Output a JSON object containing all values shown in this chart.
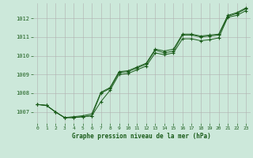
{
  "background_color": "#cce8da",
  "grid_color": "#b0b0b0",
  "line_color": "#1a5c1a",
  "marker": "+",
  "xlabel": "Graphe pression niveau de la mer (hPa)",
  "xlabel_color": "#1a5c1a",
  "xlim": [
    -0.5,
    23.5
  ],
  "ylim": [
    1006.4,
    1012.8
  ],
  "yticks": [
    1007,
    1008,
    1009,
    1010,
    1011,
    1012
  ],
  "xticks": [
    0,
    1,
    2,
    3,
    4,
    5,
    6,
    7,
    8,
    9,
    10,
    11,
    12,
    13,
    14,
    15,
    16,
    17,
    18,
    19,
    20,
    21,
    22,
    23
  ],
  "series": [
    [
      1007.4,
      1007.35,
      1007.0,
      1006.7,
      1006.7,
      1006.75,
      1006.8,
      1007.55,
      1008.15,
      1009.0,
      1009.05,
      1009.25,
      1009.45,
      1010.15,
      1010.05,
      1010.15,
      1010.9,
      1010.9,
      1010.8,
      1010.85,
      1010.95,
      1012.05,
      1012.15,
      1012.4
    ],
    [
      1007.4,
      1007.35,
      1007.0,
      1006.7,
      1006.7,
      1006.75,
      1006.8,
      1008.0,
      1008.25,
      1009.1,
      1009.15,
      1009.35,
      1009.55,
      1010.3,
      1010.15,
      1010.25,
      1011.1,
      1011.1,
      1011.0,
      1011.05,
      1011.1,
      1012.1,
      1012.25,
      1012.5
    ],
    [
      1007.4,
      1007.35,
      1007.0,
      1006.7,
      1006.75,
      1006.8,
      1006.9,
      1008.05,
      1008.3,
      1009.15,
      1009.2,
      1009.4,
      1009.6,
      1010.35,
      1010.25,
      1010.35,
      1011.15,
      1011.15,
      1011.05,
      1011.1,
      1011.15,
      1012.15,
      1012.3,
      1012.55
    ]
  ]
}
